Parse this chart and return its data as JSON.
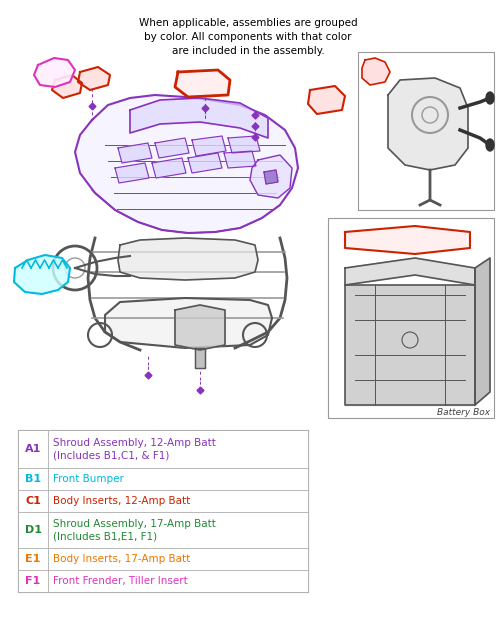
{
  "title_lines": [
    "When applicable, assemblies are grouped",
    "by color. All components with that color",
    "are included in the assembly."
  ],
  "title_fontsize": 7.5,
  "bg_color": "#ffffff",
  "legend_rows": [
    {
      "code": "A1",
      "text": "Shroud Assembly, 12-Amp Batt\n(Includes B1,C1, & F1)",
      "code_color": "#8833bb",
      "text_color": "#8833bb"
    },
    {
      "code": "B1",
      "text": "Front Bumper",
      "code_color": "#00bbdd",
      "text_color": "#00bbdd"
    },
    {
      "code": "C1",
      "text": "Body Inserts, 12-Amp Batt",
      "code_color": "#cc2200",
      "text_color": "#cc2200"
    },
    {
      "code": "D1",
      "text": "Shroud Assembly, 17-Amp Batt\n(Includes B1,E1, F1)",
      "code_color": "#228833",
      "text_color": "#228833"
    },
    {
      "code": "E1",
      "text": "Body Inserts, 17-Amp Batt",
      "code_color": "#ee7700",
      "text_color": "#ee7700"
    },
    {
      "code": "F1",
      "text": "Front Frender, Tiller Insert",
      "code_color": "#dd33bb",
      "text_color": "#dd33bb"
    }
  ],
  "battery_box_label": "Battery Box",
  "fig_width": 5.0,
  "fig_height": 6.33
}
